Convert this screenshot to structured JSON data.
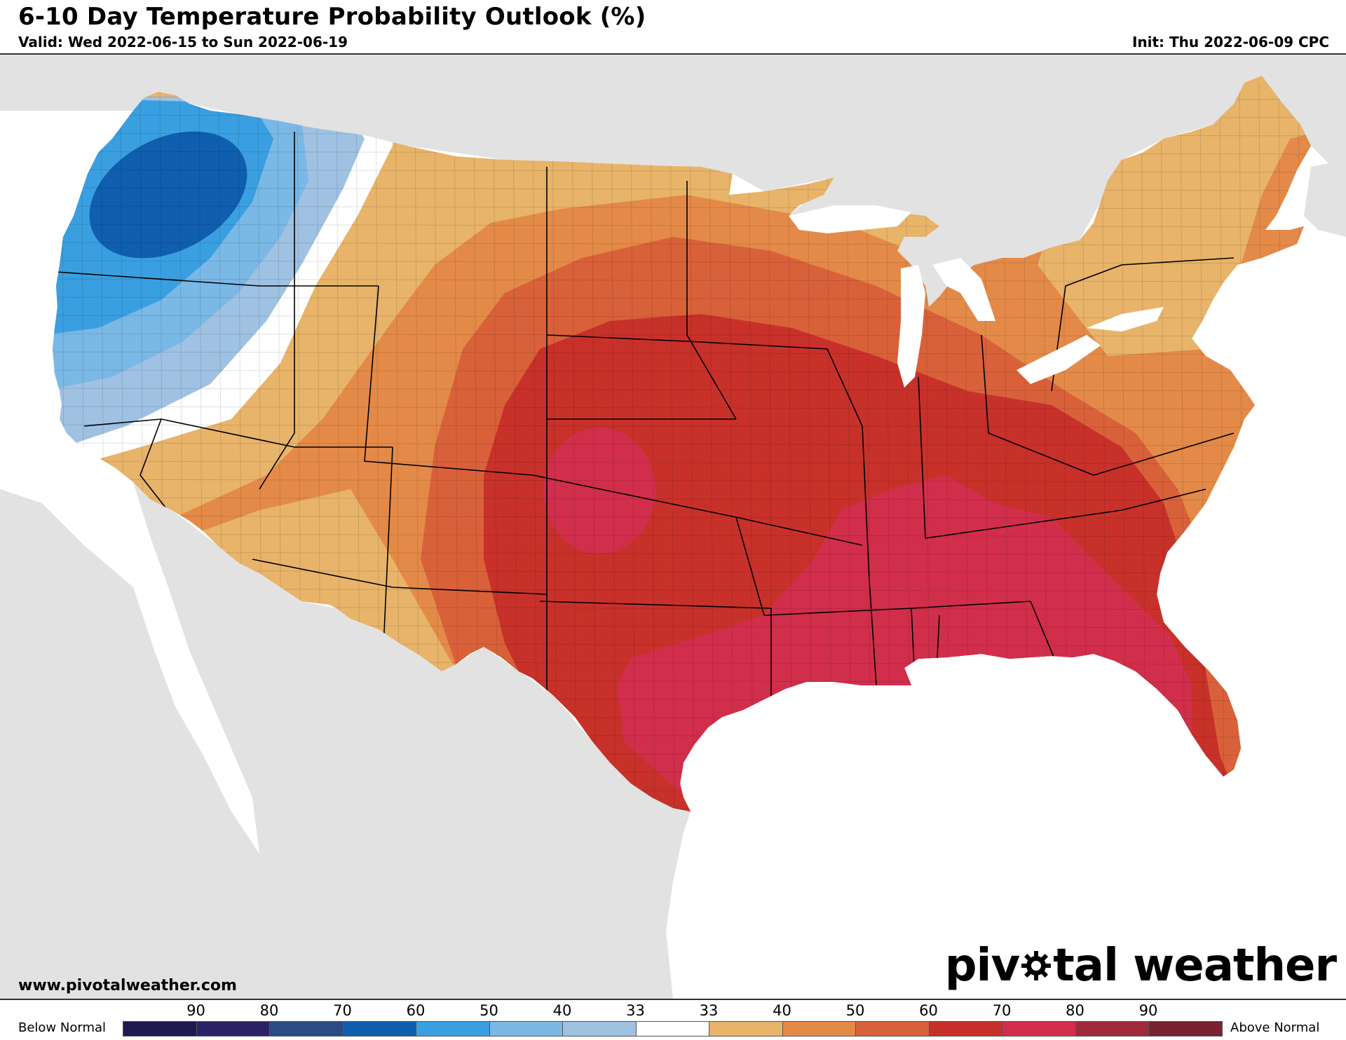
{
  "header": {
    "title": "6-10 Day Temperature Probability Outlook (%)",
    "valid": "Valid: Wed 2022-06-15 to Sun 2022-06-19",
    "init": "Init: Thu 2022-06-09 CPC"
  },
  "footer": {
    "website": "www.pivotalweather.com",
    "logo_pre": "piv",
    "logo_post": "tal weather"
  },
  "legend": {
    "below_label": "Below Normal",
    "above_label": "Above Normal",
    "ticks": [
      "90",
      "80",
      "70",
      "60",
      "50",
      "40",
      "33",
      "33",
      "40",
      "50",
      "60",
      "70",
      "80",
      "90"
    ],
    "colors": [
      "#1e1a4f",
      "#2b2266",
      "#2b4a86",
      "#0f5fae",
      "#3a9fe0",
      "#7ab8e6",
      "#9fc2e3",
      "#ffffff",
      "#e8b46a",
      "#e48a48",
      "#d9613a",
      "#c8312a",
      "#d12e4c",
      "#a12a3a",
      "#7a2230"
    ]
  },
  "map": {
    "land_color": "#e2e2e2",
    "water_color": "#ffffff"
  }
}
